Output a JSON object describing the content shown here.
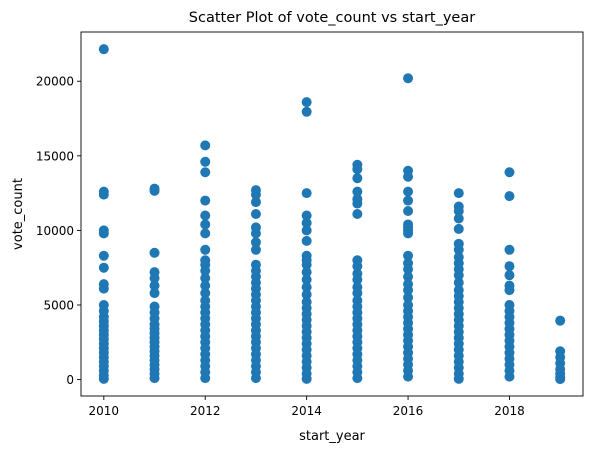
{
  "chart_data": {
    "type": "scatter",
    "title": "Scatter Plot of vote_count vs start_year",
    "xlabel": "start_year",
    "ylabel": "vote_count",
    "xlim": [
      2009.55,
      2019.45
    ],
    "ylim": [
      -1100,
      23300
    ],
    "x_ticks": [
      2010,
      2012,
      2014,
      2016,
      2018
    ],
    "y_ticks": [
      0,
      5000,
      10000,
      15000,
      20000
    ],
    "grid": false,
    "legend": "none",
    "marker_color": "#1f77b4",
    "series": [
      {
        "points": [
          [
            2010,
            22150
          ],
          [
            2010,
            12600
          ],
          [
            2010,
            12400
          ],
          [
            2010,
            10000
          ],
          [
            2010,
            9800
          ],
          [
            2010,
            8300
          ],
          [
            2010,
            7500
          ],
          [
            2010,
            6400
          ],
          [
            2010,
            6100
          ],
          [
            2010,
            5000
          ],
          [
            2010,
            4600
          ],
          [
            2010,
            4200
          ],
          [
            2010,
            3900
          ],
          [
            2010,
            3600
          ],
          [
            2010,
            3300
          ],
          [
            2010,
            3000
          ],
          [
            2010,
            2700
          ],
          [
            2010,
            2400
          ],
          [
            2010,
            2100
          ],
          [
            2010,
            1800
          ],
          [
            2010,
            1500
          ],
          [
            2010,
            1200
          ],
          [
            2010,
            900
          ],
          [
            2010,
            600
          ],
          [
            2010,
            300
          ],
          [
            2010,
            50
          ],
          [
            2011,
            12800
          ],
          [
            2011,
            12650
          ],
          [
            2011,
            8500
          ],
          [
            2011,
            7200
          ],
          [
            2011,
            6800
          ],
          [
            2011,
            6300
          ],
          [
            2011,
            5800
          ],
          [
            2011,
            4900
          ],
          [
            2011,
            4500
          ],
          [
            2011,
            4100
          ],
          [
            2011,
            3700
          ],
          [
            2011,
            3400
          ],
          [
            2011,
            3100
          ],
          [
            2011,
            2800
          ],
          [
            2011,
            2500
          ],
          [
            2011,
            2200
          ],
          [
            2011,
            1900
          ],
          [
            2011,
            1600
          ],
          [
            2011,
            1300
          ],
          [
            2011,
            1000
          ],
          [
            2011,
            700
          ],
          [
            2011,
            400
          ],
          [
            2011,
            100
          ],
          [
            2012,
            15700
          ],
          [
            2012,
            14600
          ],
          [
            2012,
            13900
          ],
          [
            2012,
            12000
          ],
          [
            2012,
            11000
          ],
          [
            2012,
            10400
          ],
          [
            2012,
            9800
          ],
          [
            2012,
            8700
          ],
          [
            2012,
            8000
          ],
          [
            2012,
            7700
          ],
          [
            2012,
            7300
          ],
          [
            2012,
            6800
          ],
          [
            2012,
            6300
          ],
          [
            2012,
            5800
          ],
          [
            2012,
            5300
          ],
          [
            2012,
            4900
          ],
          [
            2012,
            4500
          ],
          [
            2012,
            4100
          ],
          [
            2012,
            3700
          ],
          [
            2012,
            3300
          ],
          [
            2012,
            2900
          ],
          [
            2012,
            2500
          ],
          [
            2012,
            2100
          ],
          [
            2012,
            1700
          ],
          [
            2012,
            1300
          ],
          [
            2012,
            900
          ],
          [
            2012,
            500
          ],
          [
            2012,
            100
          ],
          [
            2013,
            12700
          ],
          [
            2013,
            12400
          ],
          [
            2013,
            11900
          ],
          [
            2013,
            11100
          ],
          [
            2013,
            10200
          ],
          [
            2013,
            9800
          ],
          [
            2013,
            9200
          ],
          [
            2013,
            8700
          ],
          [
            2013,
            7700
          ],
          [
            2013,
            7300
          ],
          [
            2013,
            6900
          ],
          [
            2013,
            6500
          ],
          [
            2013,
            6100
          ],
          [
            2013,
            5700
          ],
          [
            2013,
            5300
          ],
          [
            2013,
            4900
          ],
          [
            2013,
            4500
          ],
          [
            2013,
            4100
          ],
          [
            2013,
            3700
          ],
          [
            2013,
            3300
          ],
          [
            2013,
            2900
          ],
          [
            2013,
            2500
          ],
          [
            2013,
            2100
          ],
          [
            2013,
            1700
          ],
          [
            2013,
            1300
          ],
          [
            2013,
            900
          ],
          [
            2013,
            500
          ],
          [
            2013,
            100
          ],
          [
            2014,
            18600
          ],
          [
            2014,
            17950
          ],
          [
            2014,
            12500
          ],
          [
            2014,
            11000
          ],
          [
            2014,
            10500
          ],
          [
            2014,
            10000
          ],
          [
            2014,
            9300
          ],
          [
            2014,
            8300
          ],
          [
            2014,
            8000
          ],
          [
            2014,
            7700
          ],
          [
            2014,
            7200
          ],
          [
            2014,
            6700
          ],
          [
            2014,
            6200
          ],
          [
            2014,
            5700
          ],
          [
            2014,
            5200
          ],
          [
            2014,
            4800
          ],
          [
            2014,
            4400
          ],
          [
            2014,
            4000
          ],
          [
            2014,
            3600
          ],
          [
            2014,
            3200
          ],
          [
            2014,
            2800
          ],
          [
            2014,
            2400
          ],
          [
            2014,
            2000
          ],
          [
            2014,
            1600
          ],
          [
            2014,
            1200
          ],
          [
            2014,
            800
          ],
          [
            2014,
            400
          ],
          [
            2014,
            50
          ],
          [
            2015,
            14400
          ],
          [
            2015,
            14100
          ],
          [
            2015,
            13500
          ],
          [
            2015,
            12600
          ],
          [
            2015,
            12100
          ],
          [
            2015,
            11800
          ],
          [
            2015,
            11100
          ],
          [
            2015,
            8000
          ],
          [
            2015,
            7600
          ],
          [
            2015,
            7100
          ],
          [
            2015,
            6700
          ],
          [
            2015,
            6200
          ],
          [
            2015,
            5800
          ],
          [
            2015,
            5300
          ],
          [
            2015,
            4900
          ],
          [
            2015,
            4500
          ],
          [
            2015,
            4100
          ],
          [
            2015,
            3700
          ],
          [
            2015,
            3300
          ],
          [
            2015,
            2900
          ],
          [
            2015,
            2500
          ],
          [
            2015,
            2100
          ],
          [
            2015,
            1700
          ],
          [
            2015,
            1300
          ],
          [
            2015,
            900
          ],
          [
            2015,
            500
          ],
          [
            2015,
            100
          ],
          [
            2016,
            20200
          ],
          [
            2016,
            14000
          ],
          [
            2016,
            13600
          ],
          [
            2016,
            12600
          ],
          [
            2016,
            12000
          ],
          [
            2016,
            11300
          ],
          [
            2016,
            10400
          ],
          [
            2016,
            10200
          ],
          [
            2016,
            10000
          ],
          [
            2016,
            9800
          ],
          [
            2016,
            8300
          ],
          [
            2016,
            7800
          ],
          [
            2016,
            7400
          ],
          [
            2016,
            6900
          ],
          [
            2016,
            6400
          ],
          [
            2016,
            6000
          ],
          [
            2016,
            5500
          ],
          [
            2016,
            5000
          ],
          [
            2016,
            4600
          ],
          [
            2016,
            4200
          ],
          [
            2016,
            3800
          ],
          [
            2016,
            3400
          ],
          [
            2016,
            3000
          ],
          [
            2016,
            2600
          ],
          [
            2016,
            2200
          ],
          [
            2016,
            1800
          ],
          [
            2016,
            1400
          ],
          [
            2016,
            1000
          ],
          [
            2016,
            600
          ],
          [
            2016,
            200
          ],
          [
            2017,
            12500
          ],
          [
            2017,
            11600
          ],
          [
            2017,
            11300
          ],
          [
            2017,
            10800
          ],
          [
            2017,
            10100
          ],
          [
            2017,
            9100
          ],
          [
            2017,
            8700
          ],
          [
            2017,
            8200
          ],
          [
            2017,
            7800
          ],
          [
            2017,
            7400
          ],
          [
            2017,
            7000
          ],
          [
            2017,
            6500
          ],
          [
            2017,
            6000
          ],
          [
            2017,
            5600
          ],
          [
            2017,
            5200
          ],
          [
            2017,
            4800
          ],
          [
            2017,
            4400
          ],
          [
            2017,
            4000
          ],
          [
            2017,
            3600
          ],
          [
            2017,
            3200
          ],
          [
            2017,
            2800
          ],
          [
            2017,
            2400
          ],
          [
            2017,
            2000
          ],
          [
            2017,
            1600
          ],
          [
            2017,
            1200
          ],
          [
            2017,
            800
          ],
          [
            2017,
            400
          ],
          [
            2017,
            50
          ],
          [
            2018,
            13900
          ],
          [
            2018,
            12300
          ],
          [
            2018,
            8700
          ],
          [
            2018,
            7600
          ],
          [
            2018,
            7000
          ],
          [
            2018,
            6300
          ],
          [
            2018,
            6000
          ],
          [
            2018,
            5000
          ],
          [
            2018,
            4600
          ],
          [
            2018,
            4200
          ],
          [
            2018,
            3800
          ],
          [
            2018,
            3400
          ],
          [
            2018,
            3000
          ],
          [
            2018,
            2600
          ],
          [
            2018,
            2200
          ],
          [
            2018,
            1800
          ],
          [
            2018,
            1400
          ],
          [
            2018,
            1000
          ],
          [
            2018,
            600
          ],
          [
            2018,
            200
          ],
          [
            2019,
            3950
          ],
          [
            2019,
            1900
          ],
          [
            2019,
            1500
          ],
          [
            2019,
            1100
          ],
          [
            2019,
            700
          ],
          [
            2019,
            400
          ],
          [
            2019,
            150
          ],
          [
            2019,
            30
          ]
        ]
      }
    ]
  }
}
